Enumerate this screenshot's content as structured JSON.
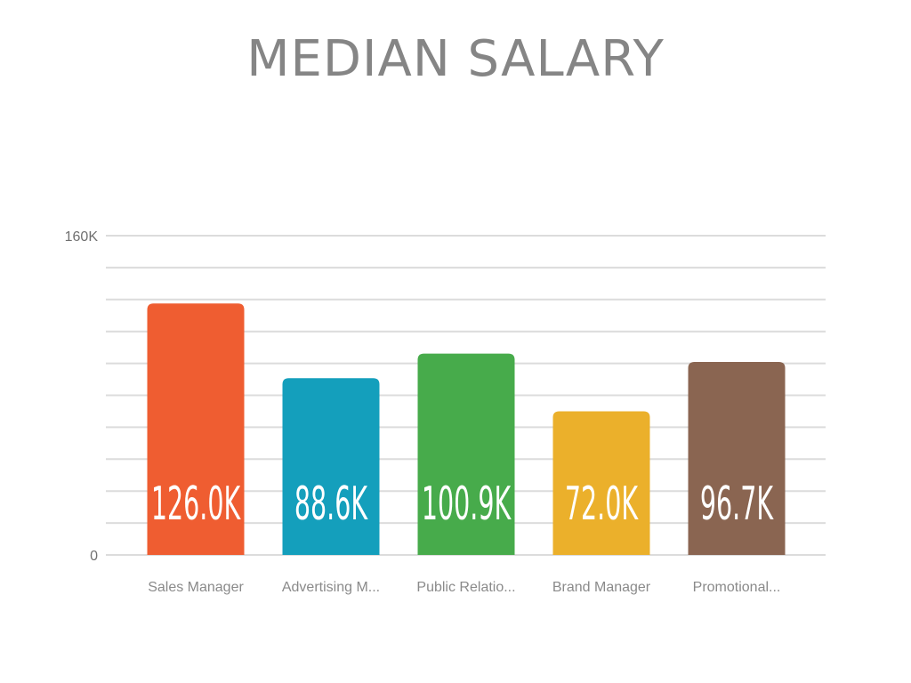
{
  "chart_data": {
    "type": "bar",
    "title": "MEDIAN SALARY",
    "xlabel": "",
    "ylabel": "",
    "ylim": [
      0,
      160000
    ],
    "y_ticks": [
      {
        "value": 0,
        "label": "0"
      },
      {
        "value": 160000,
        "label": "160K"
      }
    ],
    "grid_step": 16000,
    "grid": true,
    "legend": "none",
    "categories": [
      "Sales Manager",
      "Advertising M...",
      "Public Relatio...",
      "Brand Manager",
      "Promotional..."
    ],
    "values": [
      126000,
      88600,
      100900,
      72000,
      96700
    ],
    "data_labels": [
      "126.0K",
      "88.6K",
      "100.9K",
      "72.0K",
      "96.7K"
    ],
    "colors": [
      "#ef5d31",
      "#149fbc",
      "#47ab4b",
      "#ebb02b",
      "#8a6551"
    ]
  }
}
